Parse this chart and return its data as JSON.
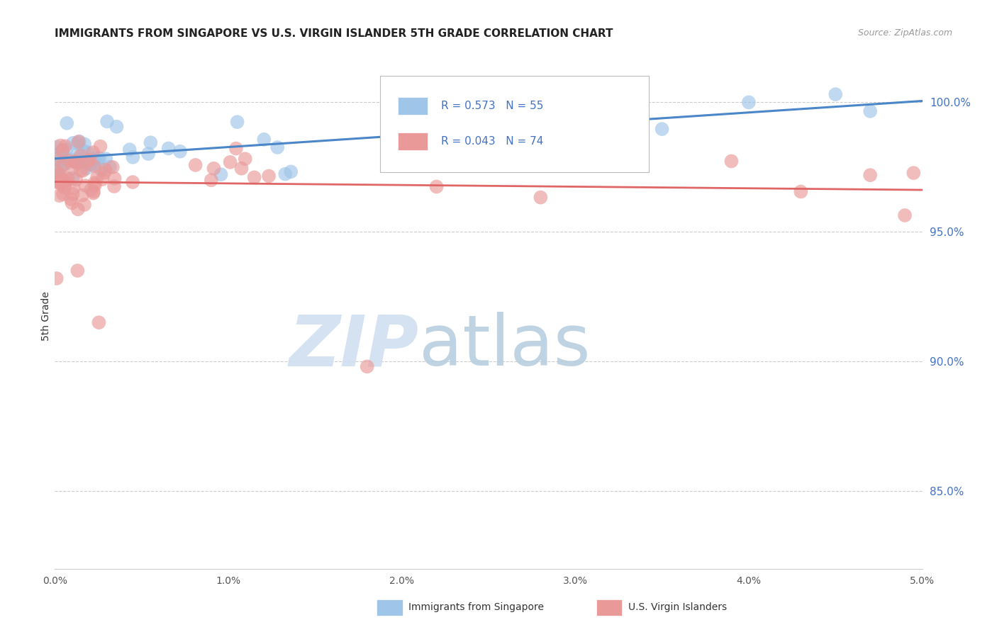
{
  "title": "IMMIGRANTS FROM SINGAPORE VS U.S. VIRGIN ISLANDER 5TH GRADE CORRELATION CHART",
  "source": "Source: ZipAtlas.com",
  "ylabel": "5th Grade",
  "y_ticks": [
    85.0,
    90.0,
    95.0,
    100.0
  ],
  "y_tick_labels": [
    "85.0%",
    "90.0%",
    "95.0%",
    "100.0%"
  ],
  "x_range": [
    0.0,
    5.0
  ],
  "y_range": [
    82.0,
    101.5
  ],
  "legend1_label": "R = 0.573   N = 55",
  "legend2_label": "R = 0.043   N = 74",
  "legend_label1": "Immigrants from Singapore",
  "legend_label2": "U.S. Virgin Islanders",
  "blue_color": "#9fc5e8",
  "pink_color": "#ea9999",
  "blue_line_color": "#4a86c8",
  "pink_line_color": "#e06666",
  "title_fontsize": 11,
  "watermark_zip_color": "#d0dff0",
  "watermark_atlas_color": "#b8cfe0"
}
